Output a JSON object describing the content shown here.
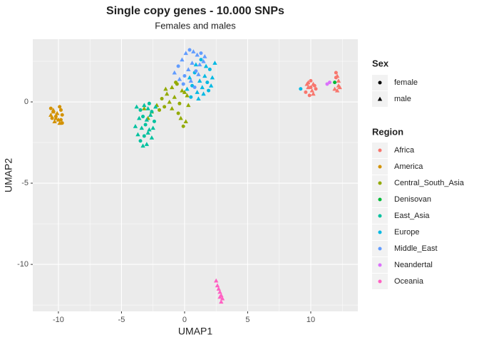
{
  "chart_data": {
    "type": "scatter",
    "title": "Single copy genes - 10.000 SNPs",
    "subtitle": "Females and males",
    "x_label": "UMAP1",
    "y_label": "UMAP2",
    "xlim": [
      -12.03,
      13.73
    ],
    "ylim": [
      -12.89,
      3.86
    ],
    "xticks": [
      -10,
      -5,
      0,
      5,
      10
    ],
    "yticks": [
      -10,
      -5,
      0
    ],
    "x_minor_grid": [
      -7.5,
      -2.5,
      2.5,
      7.5,
      12.5
    ],
    "y_minor_grid": [
      -12.5,
      -7.5,
      -2.5,
      2.5
    ],
    "grid": true,
    "shape_legend": {
      "title": "Sex",
      "labels": [
        "female",
        "male"
      ]
    },
    "color_legend_title": "Region",
    "series": [
      {
        "name": "Africa",
        "color": "#F8766D",
        "x": [
          9.6,
          9.8,
          10.0,
          10.2,
          10.4,
          9.7,
          9.9,
          10.1,
          10.3,
          9.8,
          10.0,
          10.2,
          12.0,
          12.1,
          12.2,
          11.9,
          12.1,
          12.3,
          12.0,
          12.2
        ],
        "y": [
          0.6,
          0.9,
          1.3,
          1.1,
          0.8,
          1.1,
          0.4,
          0.7,
          1.0,
          1.2,
          0.9,
          0.5,
          1.8,
          1.6,
          1.0,
          0.8,
          0.7,
          0.9,
          1.5,
          1.3
        ],
        "sex": [
          "female",
          "male",
          "female",
          "male",
          "female",
          "male",
          "female",
          "male",
          "female",
          "male",
          "female",
          "male",
          "female",
          "male",
          "male",
          "male",
          "male",
          "male",
          "female",
          "male"
        ]
      },
      {
        "name": "America",
        "color": "#D39200",
        "x": [
          -10.6,
          -10.4,
          -10.2,
          -10.0,
          -9.8,
          -9.9,
          -10.5,
          -10.3,
          -9.7,
          -10.1,
          -9.8,
          -10.6,
          -9.9,
          -10.2,
          -9.7,
          -10.4
        ],
        "y": [
          -0.4,
          -0.6,
          -0.9,
          -1.1,
          -0.5,
          -1.3,
          -1.0,
          -1.2,
          -0.8,
          -0.7,
          -1.1,
          -0.8,
          -0.3,
          -1.0,
          -1.3,
          -0.5
        ],
        "sex": [
          "female",
          "male",
          "female",
          "male",
          "female",
          "male",
          "female",
          "male",
          "female",
          "male",
          "female",
          "male",
          "female",
          "male",
          "female",
          "male"
        ]
      },
      {
        "name": "Central_South_Asia",
        "color": "#93AA00",
        "x": [
          -2.2,
          -1.8,
          -1.4,
          -1.0,
          -0.6,
          -0.2,
          0.2,
          -1.6,
          -1.2,
          -0.8,
          -0.4,
          0.0,
          -2.6,
          -2.0,
          -1.0,
          -0.3,
          -0.1,
          0.1,
          -1.5,
          -0.7,
          -3.2,
          -2.9,
          -0.5,
          0.3
        ],
        "y": [
          -0.2,
          0.2,
          0.5,
          0.9,
          1.1,
          0.7,
          0.4,
          -0.3,
          0.0,
          0.3,
          -0.1,
          0.6,
          -0.6,
          -0.5,
          -0.4,
          -1.0,
          -1.5,
          -1.2,
          0.8,
          1.2,
          -0.4,
          -1.0,
          -0.7,
          -0.2
        ],
        "sex": [
          "male",
          "female",
          "male",
          "male",
          "female",
          "male",
          "male",
          "female",
          "male",
          "male",
          "female",
          "male",
          "male",
          "female",
          "male",
          "male",
          "female",
          "male",
          "male",
          "female",
          "male",
          "male",
          "female",
          "male"
        ]
      },
      {
        "name": "Denisovan",
        "color": "#00BA38",
        "x": [
          11.9
        ],
        "y": [
          1.2
        ],
        "sex": [
          "female"
        ]
      },
      {
        "name": "East_Asia",
        "color": "#00C19F",
        "x": [
          -3.8,
          -3.5,
          -3.2,
          -2.9,
          -2.6,
          -2.3,
          -3.6,
          -3.3,
          -3.0,
          -2.7,
          -2.4,
          -3.9,
          -3.4,
          -3.1,
          -2.8,
          -3.7,
          -3.2,
          -2.9,
          -2.6,
          -3.5,
          -3.0,
          -2.5,
          -3.3,
          -2.8
        ],
        "y": [
          -0.3,
          -0.5,
          -0.2,
          -0.4,
          -0.6,
          -0.3,
          -1.0,
          -0.9,
          -1.1,
          -0.8,
          -1.2,
          -1.5,
          -1.6,
          -1.4,
          -1.7,
          -2.0,
          -2.1,
          -1.9,
          -2.2,
          -2.4,
          -2.6,
          -1.6,
          -2.7,
          -0.1
        ],
        "sex": [
          "male",
          "female",
          "male",
          "male",
          "female",
          "male",
          "male",
          "female",
          "male",
          "male",
          "female",
          "male",
          "male",
          "female",
          "male",
          "male",
          "female",
          "male",
          "male",
          "female",
          "male",
          "male",
          "male",
          "female"
        ]
      },
      {
        "name": "Europe",
        "color": "#00B9E3",
        "x": [
          0.2,
          0.6,
          1.0,
          1.4,
          1.8,
          2.2,
          0.4,
          0.8,
          1.2,
          1.6,
          2.0,
          2.4,
          0.9,
          1.3,
          1.7,
          2.1,
          0.5,
          1.1,
          1.5,
          1.9,
          9.2
        ],
        "y": [
          0.8,
          1.0,
          0.6,
          0.9,
          1.2,
          1.5,
          1.5,
          1.8,
          1.3,
          1.6,
          2.0,
          2.4,
          2.3,
          2.6,
          2.2,
          1.0,
          0.3,
          0.2,
          0.5,
          0.7,
          0.8
        ],
        "sex": [
          "male",
          "female",
          "male",
          "male",
          "female",
          "male",
          "male",
          "female",
          "male",
          "male",
          "female",
          "male",
          "male",
          "female",
          "male",
          "male",
          "female",
          "male",
          "male",
          "female",
          "female"
        ]
      },
      {
        "name": "Middle_East",
        "color": "#619CFF",
        "x": [
          -0.8,
          -0.5,
          -0.2,
          0.1,
          0.4,
          0.7,
          1.0,
          1.3,
          1.6,
          -0.4,
          0.0,
          0.3,
          0.6,
          0.9,
          1.2,
          1.5,
          -0.1,
          0.5,
          1.1,
          0.8
        ],
        "y": [
          1.8,
          2.2,
          2.6,
          3.0,
          3.2,
          3.1,
          2.9,
          3.0,
          2.8,
          1.4,
          1.6,
          2.0,
          2.4,
          1.9,
          2.3,
          2.5,
          1.1,
          1.3,
          1.7,
          0.9
        ],
        "sex": [
          "male",
          "female",
          "male",
          "male",
          "female",
          "male",
          "male",
          "female",
          "male",
          "male",
          "female",
          "male",
          "male",
          "female",
          "male",
          "male",
          "female",
          "male",
          "male",
          "female"
        ]
      },
      {
        "name": "Neandertal",
        "color": "#DB72FB",
        "x": [
          11.3,
          11.5
        ],
        "y": [
          1.1,
          1.2
        ],
        "sex": [
          "female",
          "female"
        ]
      },
      {
        "name": "Oceania",
        "color": "#FF61C3",
        "x": [
          2.5,
          2.6,
          2.7,
          2.8,
          2.9,
          3.0,
          2.9,
          2.8
        ],
        "y": [
          -11.0,
          -11.3,
          -11.5,
          -11.7,
          -11.9,
          -12.1,
          -12.3,
          -12.0
        ],
        "sex": [
          "male",
          "male",
          "male",
          "male",
          "male",
          "male",
          "male",
          "male"
        ]
      }
    ]
  }
}
